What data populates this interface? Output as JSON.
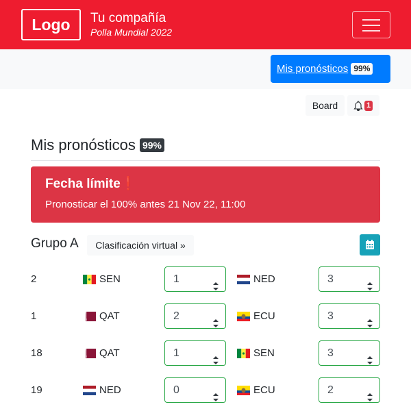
{
  "header": {
    "logo": "Logo",
    "company": "Tu compañía",
    "subtitle": "Polla Mundial 2022",
    "menu_icon": "hamburger-icon",
    "color": "#ee1c2f"
  },
  "nav": {
    "mis_label": "Mis pronósticos",
    "mis_badge": "99%",
    "board_label": "Board",
    "notif_count": "1"
  },
  "page": {
    "title": "Mis pronósticos",
    "badge": "99%"
  },
  "alert": {
    "heading": "Fecha límite",
    "icon": "exclamation-icon",
    "text": "Pronosticar el 100% antes 21 Nov 22, 11:00"
  },
  "group": {
    "name": "Grupo A",
    "clasificacion": "Clasificación virtual »",
    "calendar_icon": "calendar-icon"
  },
  "matches": [
    {
      "num": "2",
      "home": "SEN",
      "home_score": "1",
      "away": "NED",
      "away_score": "3"
    },
    {
      "num": "1",
      "home": "QAT",
      "home_score": "2",
      "away": "ECU",
      "away_score": "3"
    },
    {
      "num": "18",
      "home": "QAT",
      "home_score": "1",
      "away": "SEN",
      "away_score": "3"
    },
    {
      "num": "19",
      "home": "NED",
      "home_score": "0",
      "away": "ECU",
      "away_score": "2"
    }
  ]
}
